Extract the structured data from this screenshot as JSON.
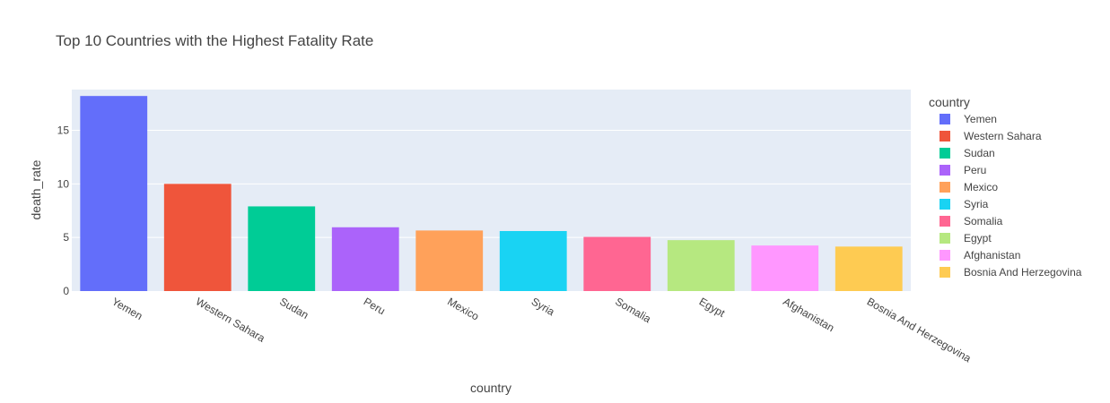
{
  "chart_data": {
    "type": "bar",
    "title": "Top 10 Countries with the Highest Fatality Rate",
    "xlabel": "country",
    "ylabel": "death_rate",
    "ylim": [
      0,
      18.8
    ],
    "yticks": [
      0,
      5,
      10,
      15
    ],
    "grid": true,
    "legend_title": "country",
    "legend_position": "right",
    "categories": [
      "Yemen",
      "Western Sahara",
      "Sudan",
      "Peru",
      "Mexico",
      "Syria",
      "Somalia",
      "Egypt",
      "Afghanistan",
      "Bosnia And Herzegovina"
    ],
    "values": [
      18.2,
      10.0,
      7.9,
      5.95,
      5.65,
      5.6,
      5.05,
      4.75,
      4.25,
      4.15
    ],
    "colors": [
      "#636efa",
      "#ef553b",
      "#00cc96",
      "#ab63fa",
      "#ffa15a",
      "#19d3f3",
      "#ff6692",
      "#b6e880",
      "#ff97ff",
      "#fecb52"
    ]
  }
}
